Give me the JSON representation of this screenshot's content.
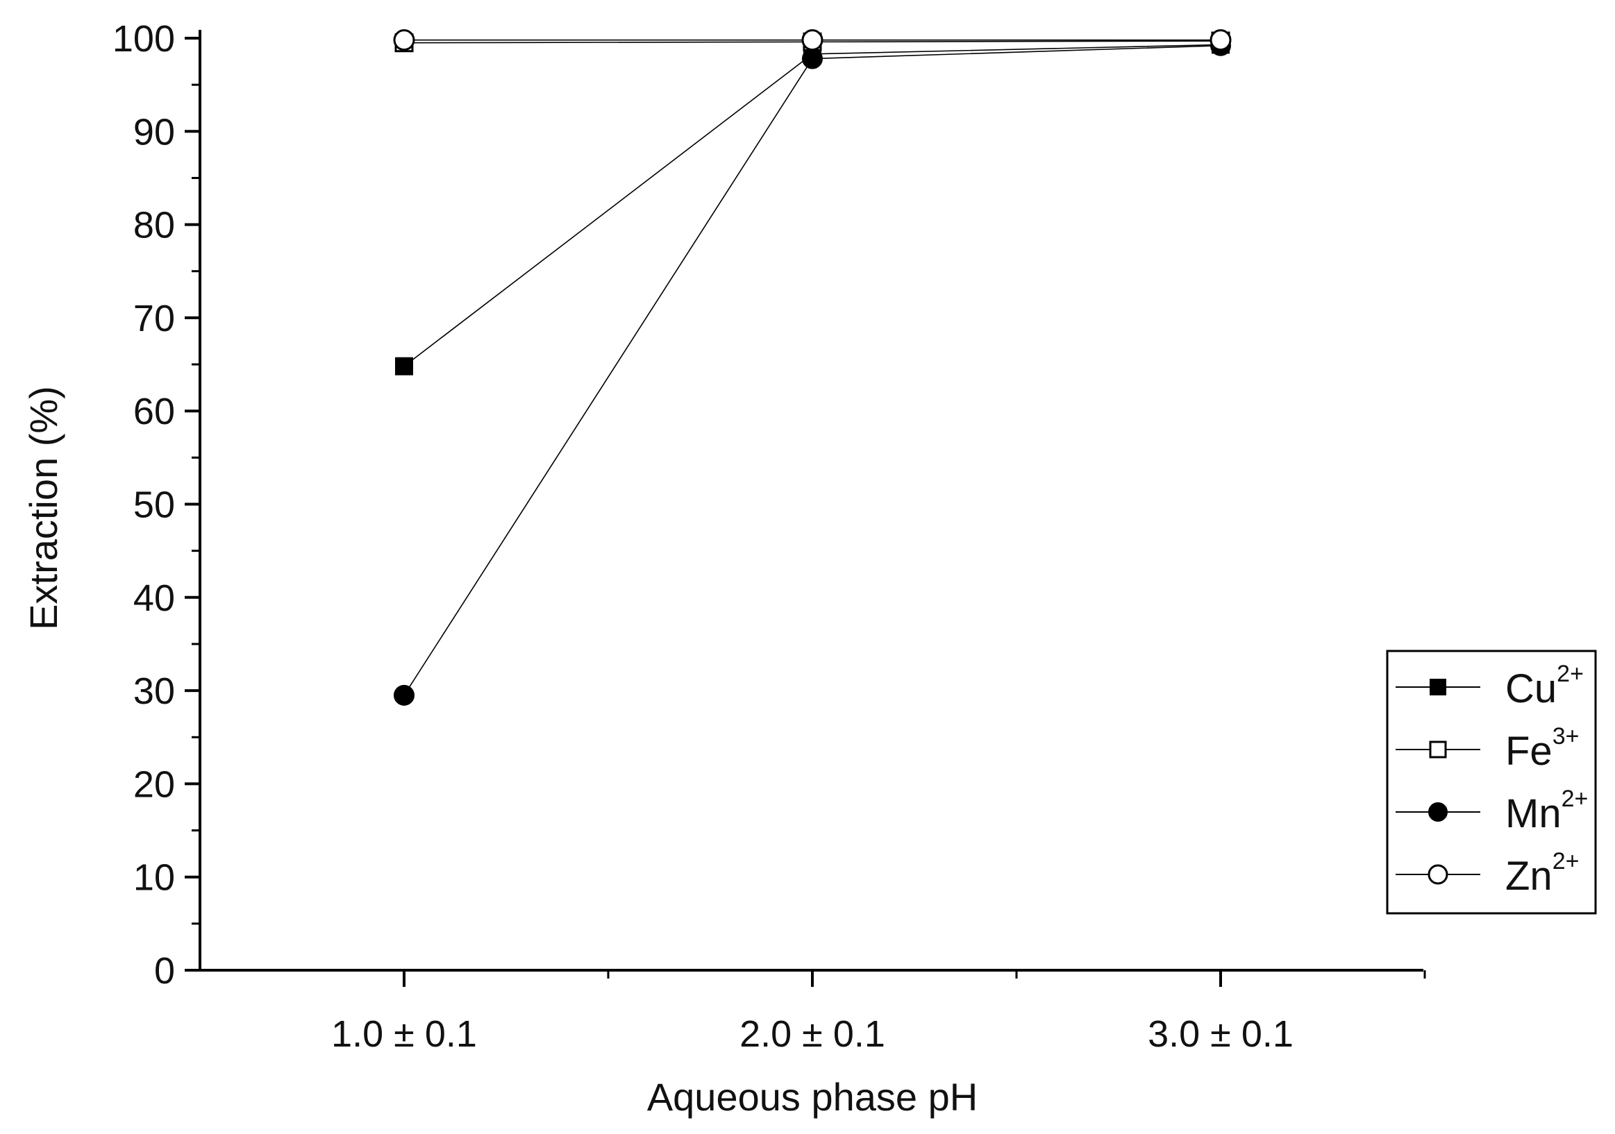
{
  "chart_data": {
    "type": "line",
    "title": "",
    "xlabel": "Aqueous phase pH",
    "ylabel": "Extraction (%)",
    "categories": [
      "1.0 ± 0.1",
      "2.0 ± 0.1",
      "3.0 ± 0.1"
    ],
    "ylim": [
      0,
      100
    ],
    "yticks": [
      "0",
      "10",
      "20",
      "30",
      "40",
      "50",
      "60",
      "70",
      "80",
      "90",
      "100"
    ],
    "grid": false,
    "legend_position": "right",
    "series": [
      {
        "name": "Cu",
        "charge": "2+",
        "marker": "filled-square",
        "values": [
          64.8,
          98.3,
          99.3
        ]
      },
      {
        "name": "Fe",
        "charge": "3+",
        "marker": "open-square",
        "values": [
          99.5,
          99.6,
          99.7
        ]
      },
      {
        "name": "Mn",
        "charge": "2+",
        "marker": "filled-circle",
        "values": [
          29.5,
          97.8,
          99.2
        ]
      },
      {
        "name": "Zn",
        "charge": "2+",
        "marker": "open-circle",
        "values": [
          99.8,
          99.8,
          99.8
        ]
      }
    ]
  }
}
